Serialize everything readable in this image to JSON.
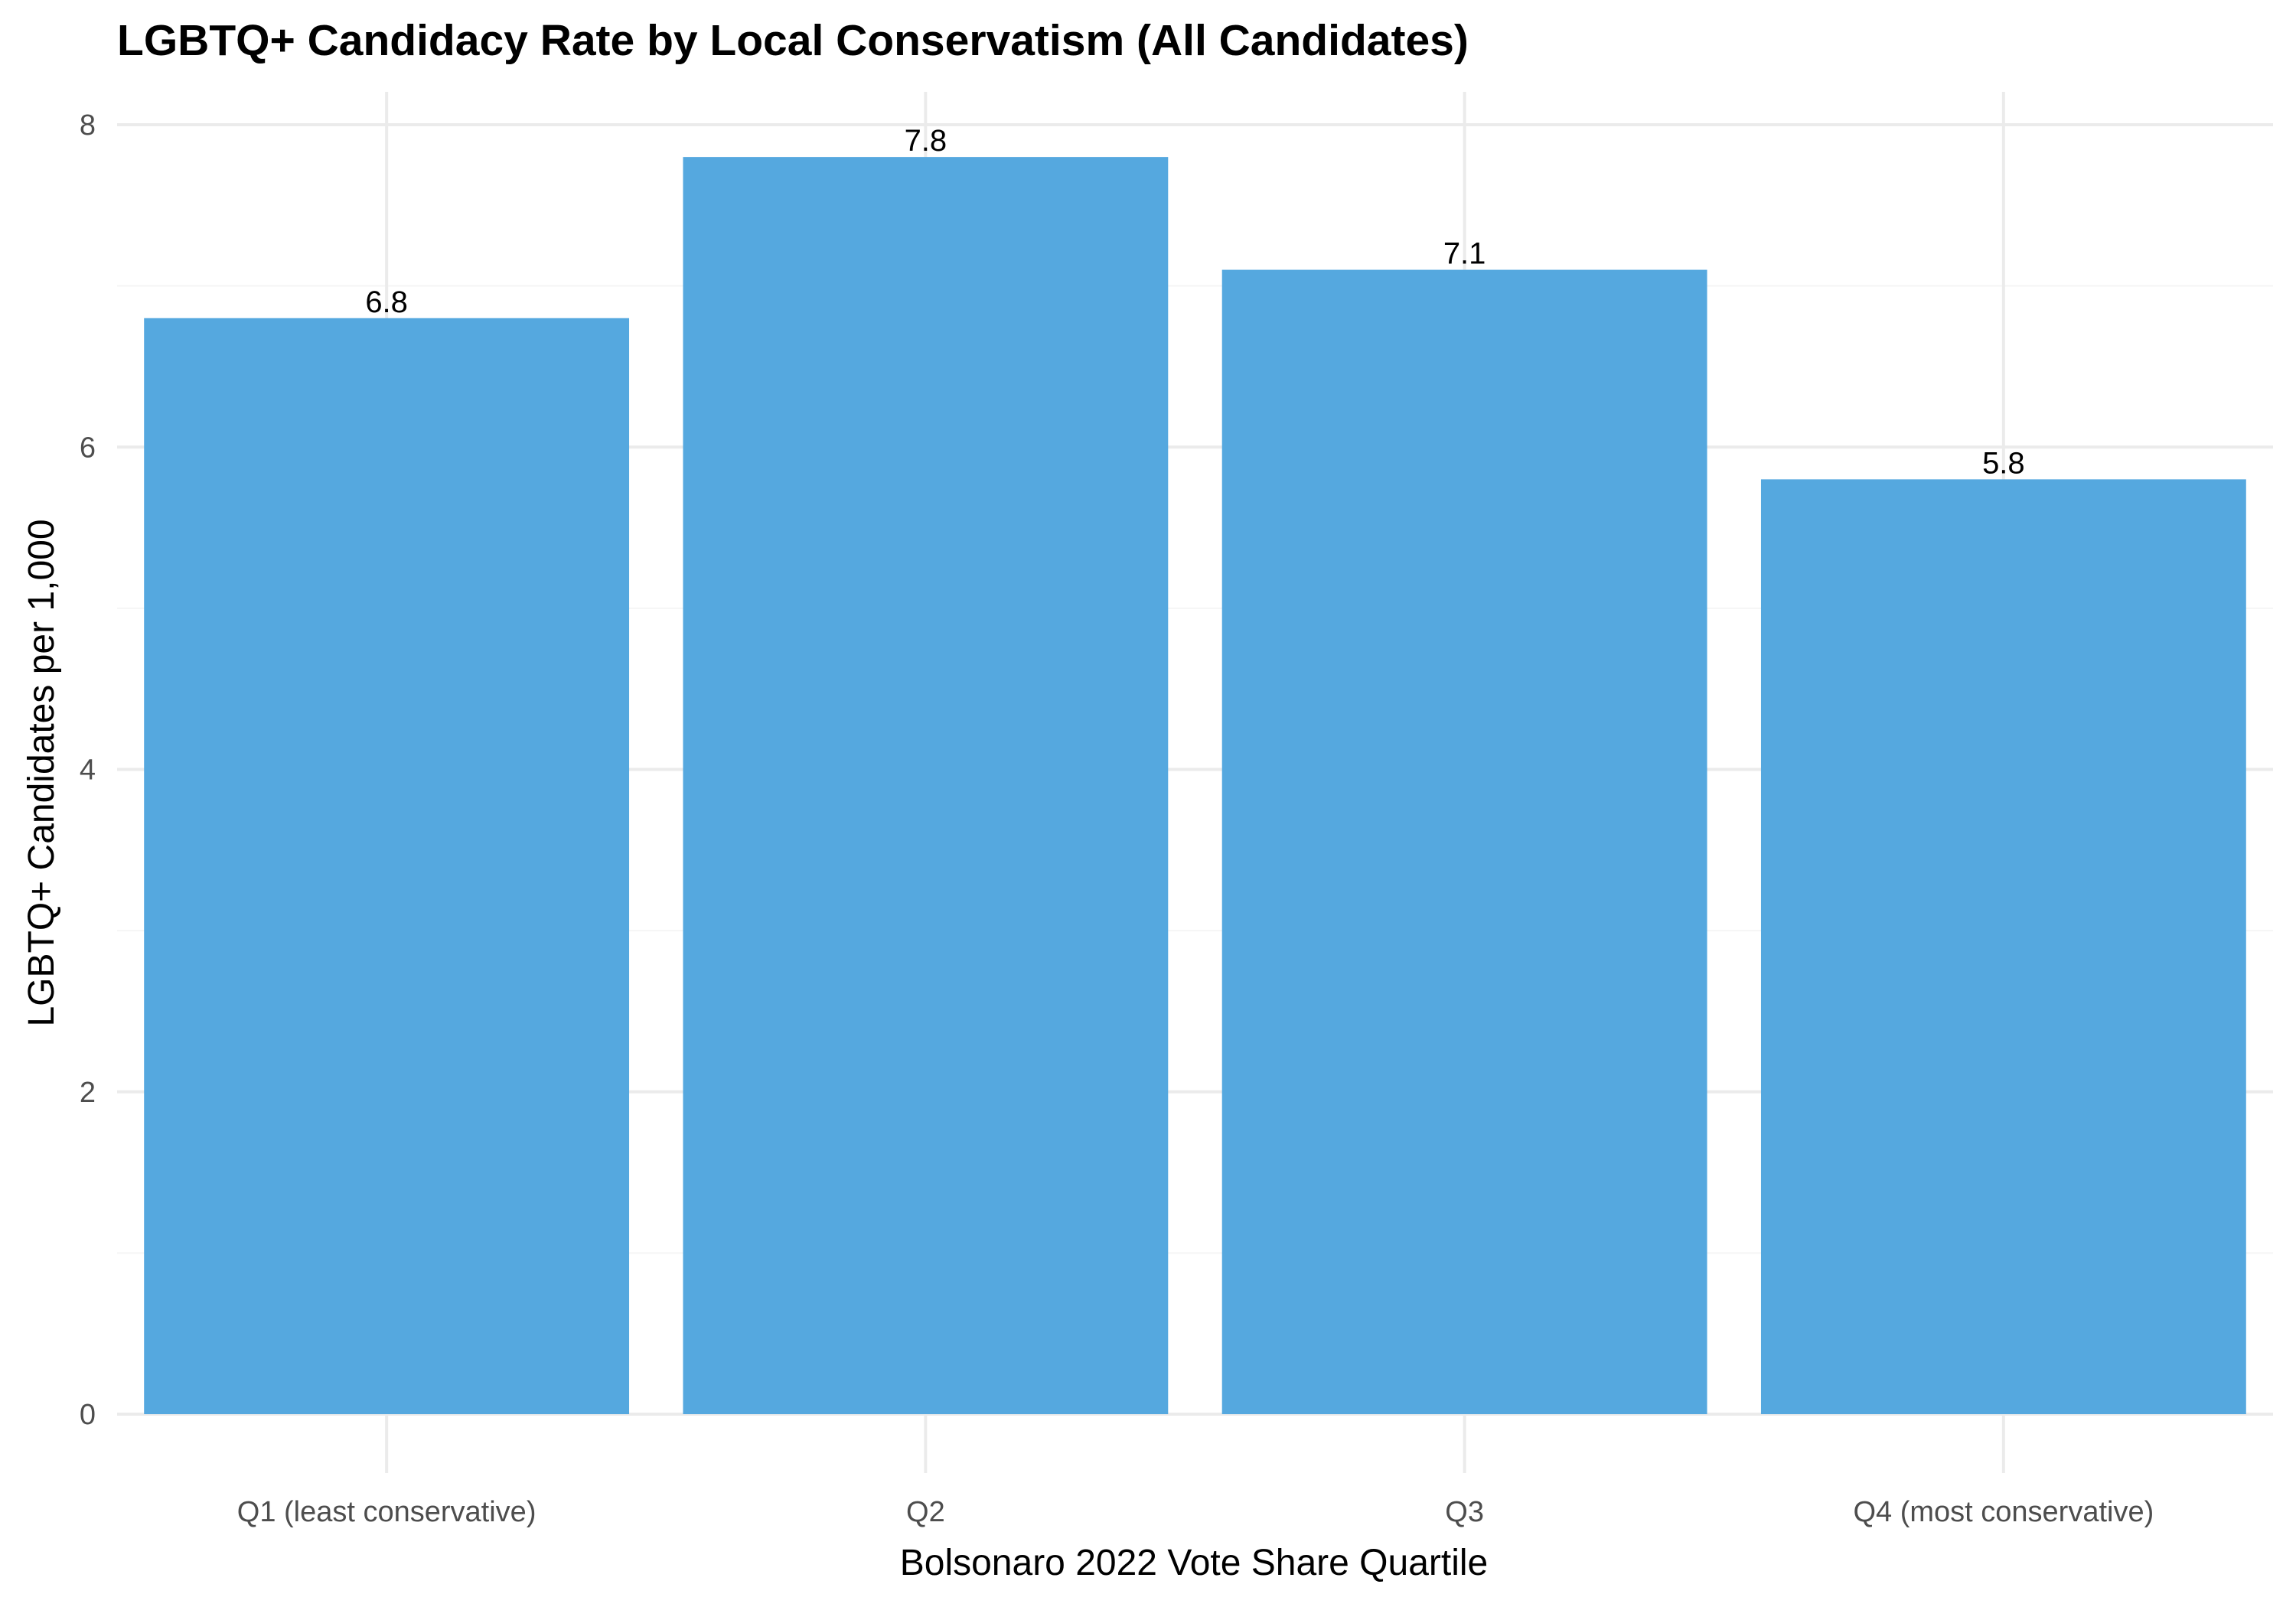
{
  "chart_data": {
    "type": "bar",
    "title": "LGBTQ+ Candidacy Rate by Local Conservatism (All Candidates)",
    "xlabel": "Bolsonaro 2022 Vote Share Quartile",
    "ylabel": "LGBTQ+ Candidates per 1,000",
    "categories": [
      "Q1 (least conservative)",
      "Q2",
      "Q3",
      "Q4 (most conservative)"
    ],
    "values": [
      6.8,
      7.8,
      7.1,
      5.8
    ],
    "data_labels": [
      "6.8",
      "7.8",
      "7.1",
      "5.8"
    ],
    "ylim": [
      0,
      8.2
    ],
    "yticks": [
      0,
      2,
      4,
      6,
      8
    ],
    "ytick_labels": [
      "0",
      "2",
      "4",
      "6",
      "8"
    ],
    "grid": true,
    "legend": "none",
    "bar_color": "#4ea4de"
  }
}
